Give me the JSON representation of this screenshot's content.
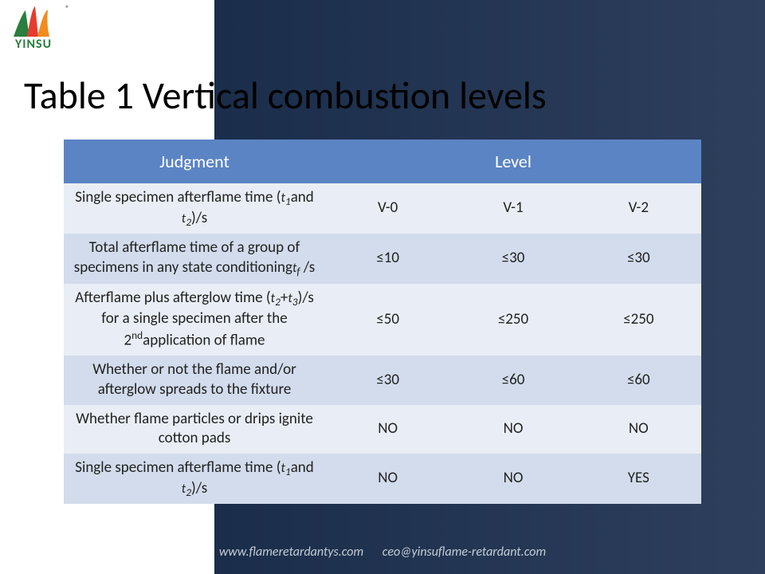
{
  "brand": {
    "name": "YINSU",
    "reg": "®"
  },
  "title": "Table 1 Vertical combustion levels",
  "watermark": "YINSU",
  "table": {
    "headers": {
      "judgment": "Judgment",
      "level": "Level"
    },
    "rows": [
      {
        "label_html": "Single specimen afterflame time (<span class='sub'>t<sub>1</sub></span>and <span class='sub'>t<sub>2</sub></span>)/s",
        "v0": "V-0",
        "v1": "V-1",
        "v2": "V-2"
      },
      {
        "label_html": "Total afterflame time of a group of specimens in any state conditioning<span class='sub'>t<sub>f</sub></span> /s",
        "v0": "≤10",
        "v1": "≤30",
        "v2": "≤30"
      },
      {
        "label_html": "Afterflame plus afterglow time (<span class='sub'>t<sub>2</sub></span>+<span class='sub'>t<sub>3</sub></span>)/s for a single specimen after the 2<span class='sup'>nd</span>application of flame",
        "v0": "≤50",
        "v1": "≤250",
        "v2": "≤250"
      },
      {
        "label_html": "Whether or not the flame and/or afterglow spreads to the fixture",
        "v0": "≤30",
        "v1": "≤60",
        "v2": "≤60"
      },
      {
        "label_html": "Whether flame particles or drips ignite cotton pads",
        "v0": "NO",
        "v1": "NO",
        "v2": "NO"
      },
      {
        "label_html": "Single specimen afterflame time (<span class='sub'>t<sub>1</sub></span>and <span class='sub'>t<sub>2</sub></span>)/s",
        "v0": "NO",
        "v1": "NO",
        "v2": "YES"
      }
    ],
    "row_bands": [
      "odd",
      "even",
      "odd",
      "even",
      "odd",
      "even"
    ],
    "colors": {
      "header_bg": "#5b84c4",
      "odd_bg": "#e9eef6",
      "even_bg": "#d2dcec",
      "text": "#222222"
    }
  },
  "footer": {
    "url": "www.flameretardantys.com",
    "email": "ceo@yinsuflame-retardant.com"
  }
}
